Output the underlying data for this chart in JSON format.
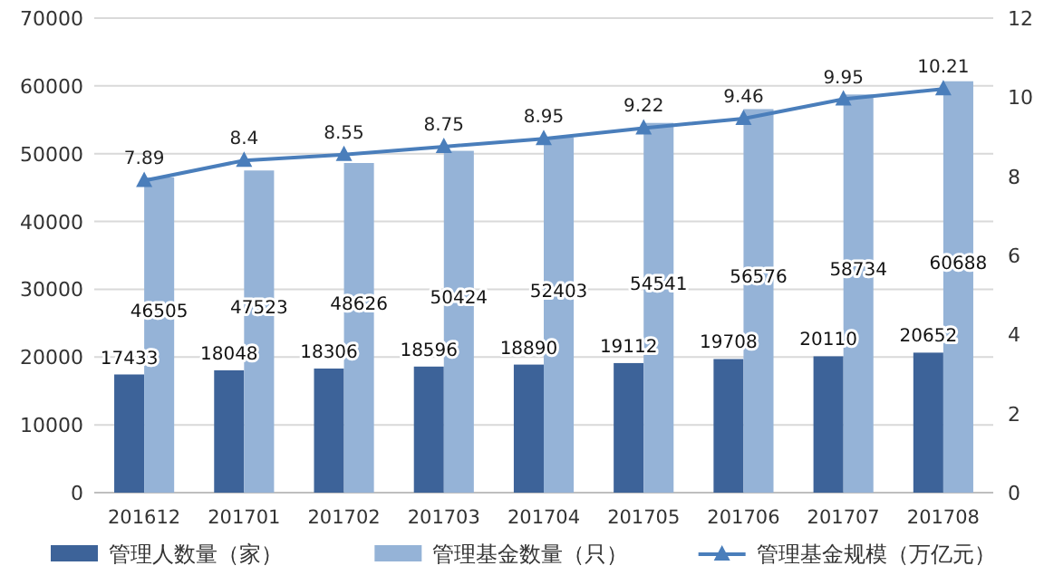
{
  "chart_data": {
    "type": "bar",
    "categories": [
      "201612",
      "201701",
      "201702",
      "201703",
      "201704",
      "201705",
      "201706",
      "201707",
      "201708"
    ],
    "series": [
      {
        "name": "管理人数量（家）",
        "color": "#3d6399",
        "values": [
          17433,
          18048,
          18306,
          18596,
          18890,
          19112,
          19708,
          20110,
          20652
        ]
      },
      {
        "name": "管理基金数量（只）",
        "color": "#95b3d7",
        "values": [
          46505,
          47523,
          48626,
          50424,
          52403,
          54541,
          56576,
          58734,
          60688
        ]
      },
      {
        "name": "管理基金规模（万亿元）",
        "type": "line",
        "axis": "y2",
        "marker": "triangle",
        "color": "#4a7ebb",
        "values": [
          7.89,
          8.4,
          8.55,
          8.75,
          8.95,
          9.22,
          9.46,
          9.95,
          10.21
        ]
      }
    ],
    "ylim": [
      0,
      70000
    ],
    "yticks": [
      0,
      10000,
      20000,
      30000,
      40000,
      50000,
      60000,
      70000
    ],
    "y2lim": [
      0,
      12
    ],
    "y2ticks": [
      0,
      2,
      4,
      6,
      8,
      10,
      12
    ],
    "grid": "y",
    "legend": "bottom",
    "data_labels": true
  }
}
